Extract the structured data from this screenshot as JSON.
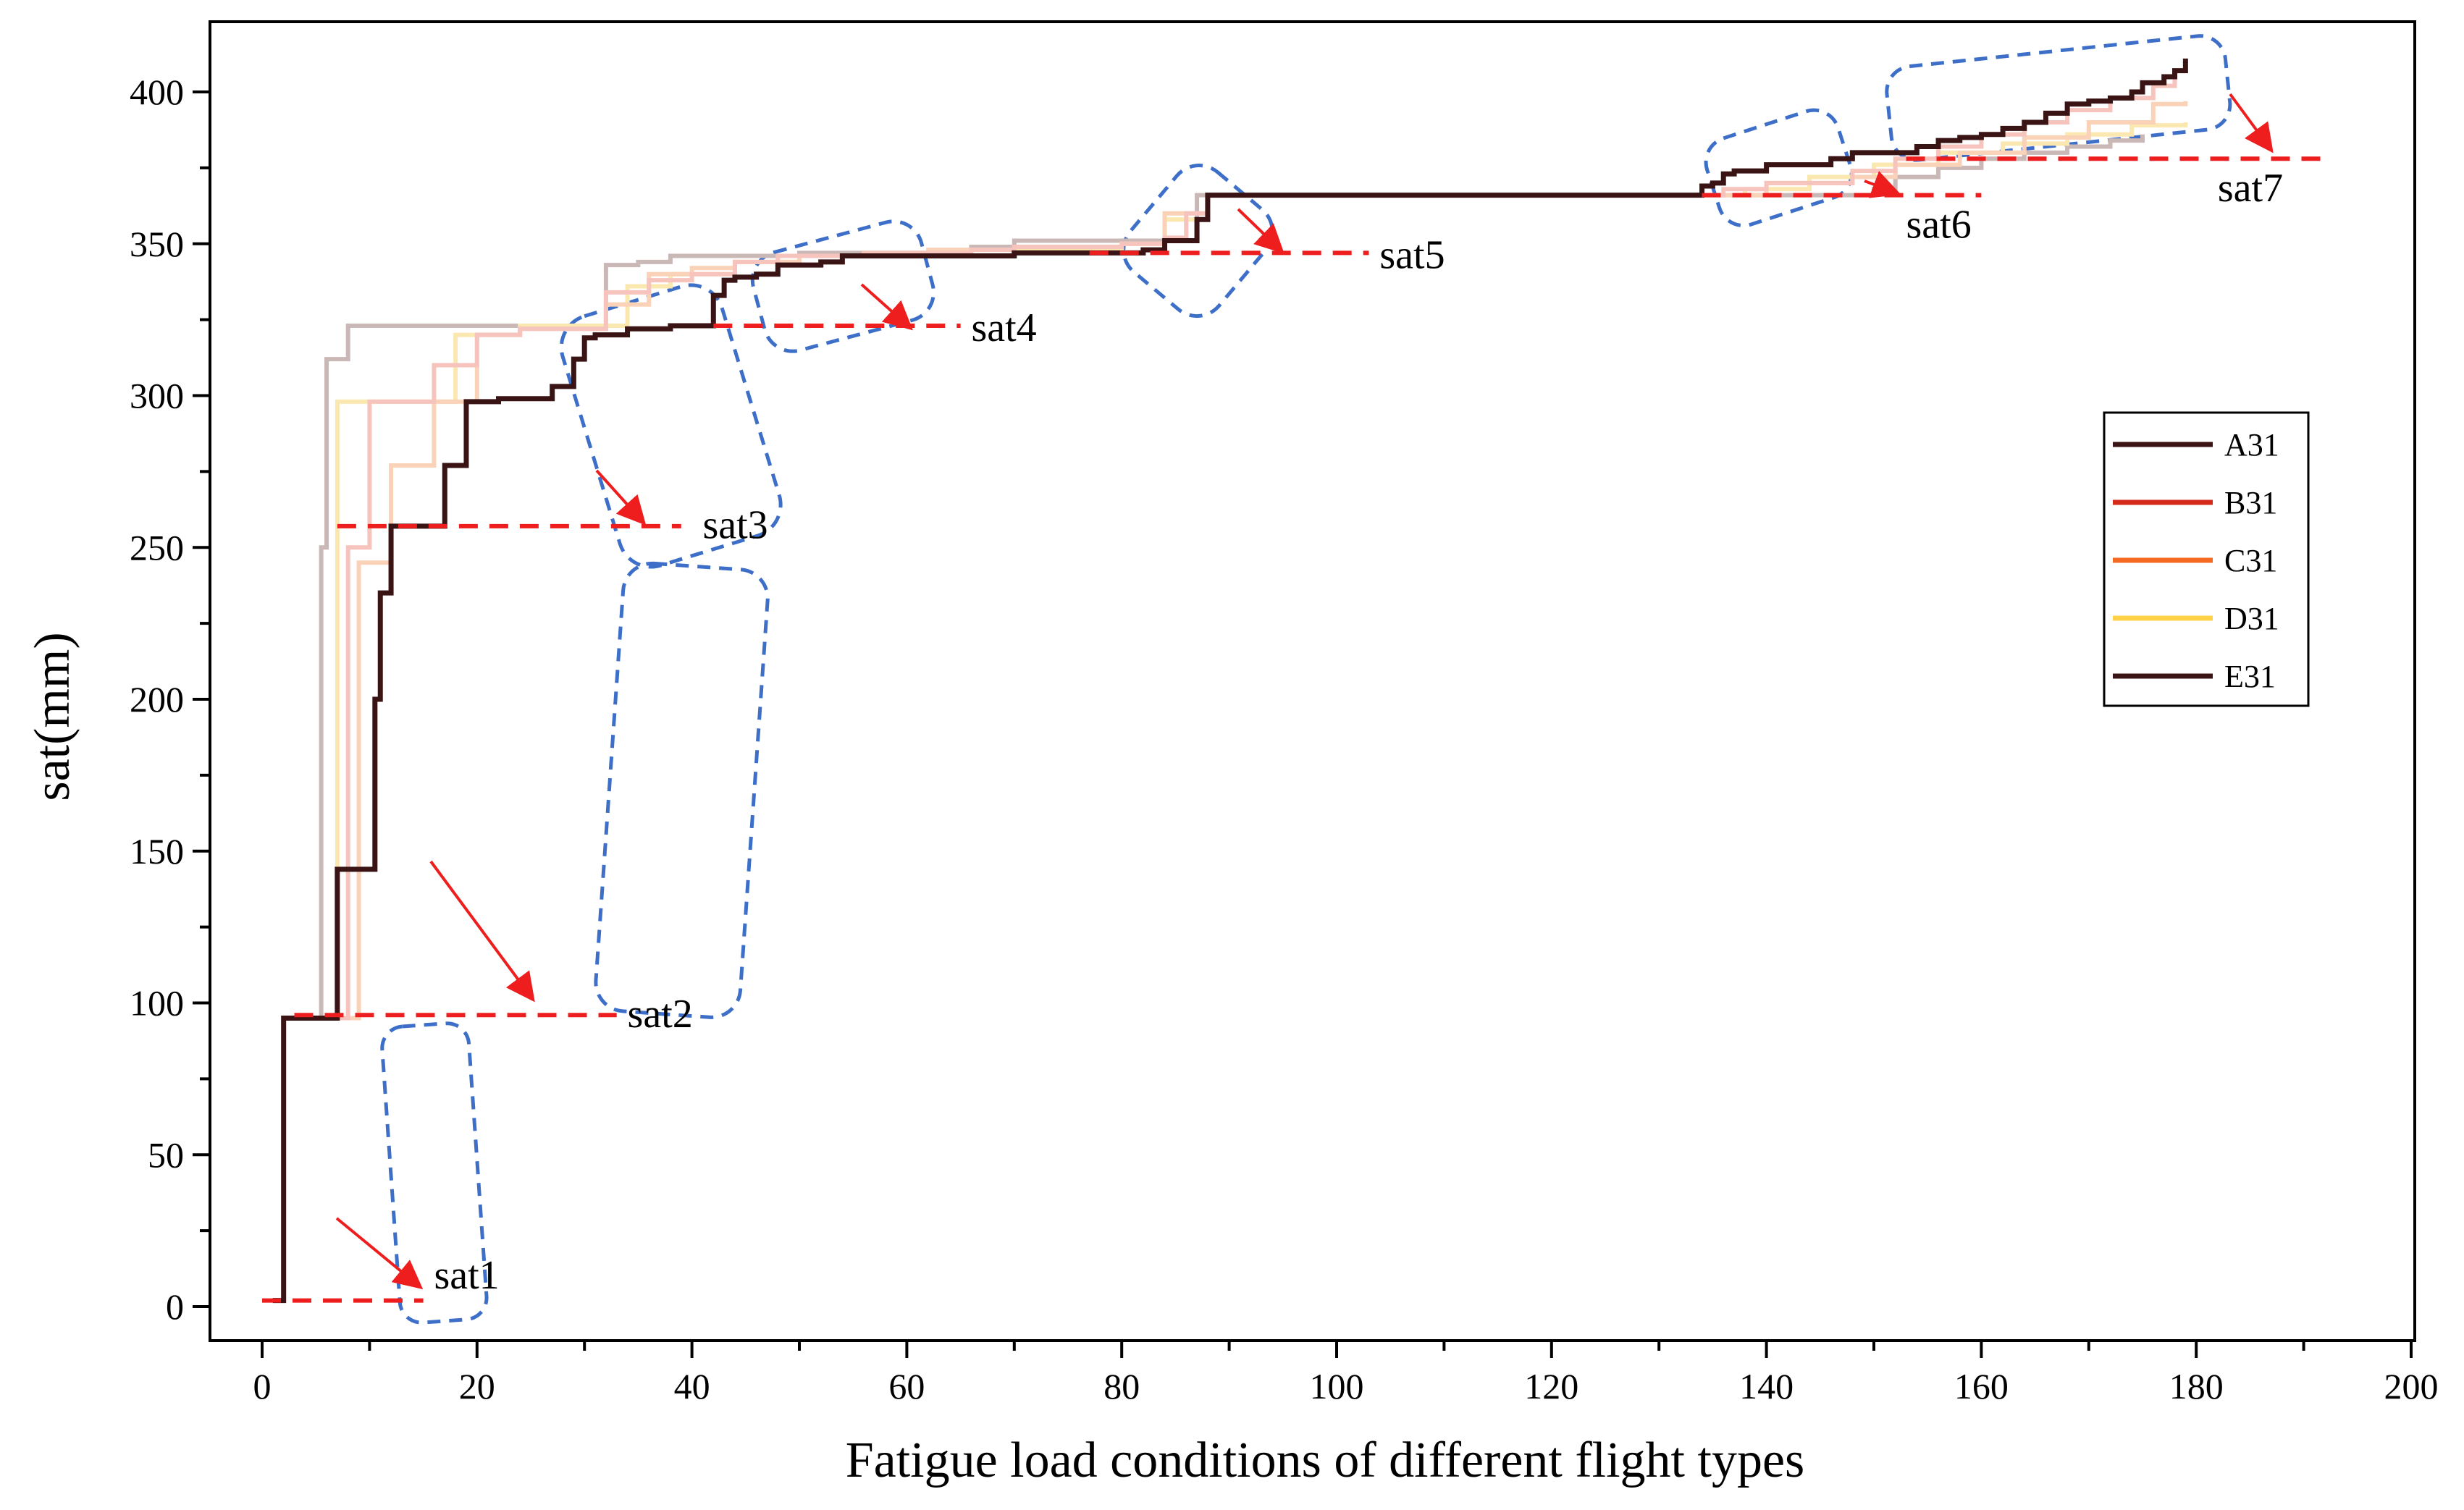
{
  "chart_data": {
    "type": "line",
    "title": "",
    "xlabel": "Fatigue load conditions of different flight types",
    "ylabel": "sat(mm)",
    "xlim": [
      -5,
      200
    ],
    "ylim": [
      -10,
      410
    ],
    "xticks": [
      0,
      20,
      40,
      60,
      80,
      100,
      120,
      140,
      160,
      180,
      200
    ],
    "yticks": [
      0,
      50,
      100,
      150,
      200,
      250,
      300,
      350,
      400
    ],
    "xtick_labels": [
      "0",
      "20",
      "40",
      "60",
      "80",
      "100",
      "120",
      "140",
      "160",
      "180",
      "200"
    ],
    "ytick_labels": [
      "0",
      "50",
      "100",
      "150",
      "200",
      "250",
      "300",
      "350",
      "400"
    ],
    "legend_position": "right",
    "series": [
      {
        "name": "A31",
        "color": "#c9b8b6",
        "legend_color": "#3a1414",
        "x": [
          1,
          2,
          5,
          5.5,
          6,
          8,
          10,
          14,
          18,
          22,
          26,
          28,
          30,
          31,
          32,
          35,
          38,
          42,
          46,
          50,
          55,
          62,
          66,
          70,
          84,
          87,
          90,
          133,
          134,
          136,
          140,
          144,
          148,
          150,
          152,
          156,
          160,
          164,
          168,
          172,
          175
        ],
        "y": [
          2,
          95,
          95,
          250,
          312,
          323,
          323,
          323,
          323,
          323,
          323,
          323,
          323,
          323,
          343,
          344,
          346,
          346,
          346,
          347,
          347,
          347,
          349,
          351,
          351,
          366,
          366,
          366,
          366,
          366,
          366,
          366,
          366,
          368,
          372,
          375,
          378,
          380,
          382,
          384,
          386
        ]
      },
      {
        "name": "B31",
        "color": "#f7c4bd",
        "legend_color": "#d42a1a",
        "x": [
          1,
          2,
          7,
          8,
          10,
          12,
          14,
          16,
          20,
          24,
          28,
          32,
          36,
          40,
          44,
          48,
          56,
          66,
          70,
          80,
          84,
          86,
          88,
          133,
          136,
          140,
          148,
          152,
          156,
          160,
          164,
          168,
          172,
          176,
          178
        ],
        "y": [
          2,
          95,
          95,
          250,
          298,
          298,
          298,
          310,
          320,
          322,
          322,
          334,
          338,
          340,
          344,
          346,
          347,
          348,
          349,
          350,
          352,
          360,
          366,
          366,
          368,
          370,
          374,
          378,
          382,
          386,
          390,
          394,
          398,
          402,
          405
        ]
      },
      {
        "name": "C31",
        "color": "#fad2b8",
        "legend_color": "#f46a22",
        "x": [
          1,
          2,
          8,
          9,
          12,
          16,
          20,
          24,
          28,
          32,
          36,
          40,
          44,
          50,
          56,
          62,
          70,
          80,
          84,
          88,
          133,
          136,
          140,
          148,
          152,
          158,
          164,
          170,
          176,
          179
        ],
        "y": [
          2,
          95,
          95,
          245,
          277,
          298,
          320,
          322,
          322,
          330,
          340,
          342,
          344,
          346,
          347,
          348,
          349,
          350,
          360,
          366,
          366,
          366,
          370,
          372,
          376,
          380,
          385,
          390,
          396,
          397
        ]
      },
      {
        "name": "D31",
        "color": "#fbe7b0",
        "legend_color": "#ffd24a",
        "x": [
          1,
          2,
          6,
          7,
          12,
          16,
          18,
          24,
          30,
          34,
          38,
          44,
          50,
          56,
          66,
          80,
          84,
          88,
          133,
          138,
          144,
          150,
          156,
          162,
          168,
          174,
          179
        ],
        "y": [
          2,
          95,
          95,
          298,
          298,
          298,
          320,
          323,
          323,
          336,
          340,
          344,
          346,
          347,
          348,
          350,
          358,
          366,
          366,
          368,
          372,
          376,
          380,
          383,
          386,
          389,
          390
        ]
      },
      {
        "name": "E31",
        "color": "#3a1414",
        "legend_color": "#3a1414",
        "x": [
          1,
          2,
          5,
          6,
          7,
          7.5,
          10,
          10.5,
          11,
          12,
          14,
          15,
          17,
          18,
          19,
          22,
          26,
          27,
          29,
          30,
          31,
          32,
          34,
          36,
          38,
          40,
          41,
          42,
          43,
          44,
          46,
          48,
          52,
          54,
          56,
          58,
          60,
          62,
          64,
          66,
          68,
          70,
          72,
          74,
          76,
          78,
          80,
          82,
          83,
          84,
          86,
          87,
          88,
          133,
          134,
          135,
          136,
          137,
          140,
          144,
          146,
          148,
          150,
          152,
          154,
          156,
          158,
          160,
          162,
          164,
          166,
          168,
          170,
          172,
          174,
          175,
          177,
          178,
          179
        ],
        "y": [
          2,
          95,
          95,
          95,
          144,
          144,
          144,
          200,
          235,
          257,
          257,
          257,
          277,
          277,
          298,
          299,
          299,
          303,
          312,
          319,
          320,
          320,
          322,
          322,
          323,
          323,
          323,
          333,
          338,
          339,
          340,
          343,
          344,
          346,
          346,
          346,
          346,
          346,
          346,
          346,
          346,
          347,
          347,
          347,
          347,
          347,
          347,
          348,
          348,
          351,
          351,
          358,
          366,
          366,
          369,
          370,
          373,
          374,
          376,
          376,
          378,
          380,
          380,
          380,
          382,
          384,
          385,
          386,
          388,
          390,
          393,
          396,
          397,
          398,
          400,
          403,
          405,
          407,
          411
        ]
      }
    ],
    "annotations": [
      {
        "label": "sat1",
        "level": 2,
        "dash_from": 0,
        "dash_to": 15,
        "text_x": 16,
        "text_y": 6
      },
      {
        "label": "sat2",
        "level": 96,
        "dash_from": 3,
        "dash_to": 33,
        "text_x": 34,
        "text_y": 92
      },
      {
        "label": "sat3",
        "level": 257,
        "dash_from": 7,
        "dash_to": 39,
        "text_x": 41,
        "text_y": 253
      },
      {
        "label": "sat4",
        "level": 323,
        "dash_from": 42,
        "dash_to": 65,
        "text_x": 66,
        "text_y": 318
      },
      {
        "label": "sat5",
        "level": 347,
        "dash_from": 77,
        "dash_to": 103,
        "text_x": 104,
        "text_y": 342
      },
      {
        "label": "sat6",
        "level": 366,
        "dash_from": 134,
        "dash_to": 160,
        "text_x": 153,
        "text_y": 352
      },
      {
        "label": "sat7",
        "level": 378,
        "dash_from": 153,
        "dash_to": 192,
        "text_x": 182,
        "text_y": 364
      }
    ],
    "highlight_color": "#3e6fc8",
    "annotation_color": "#ee1e1e"
  }
}
